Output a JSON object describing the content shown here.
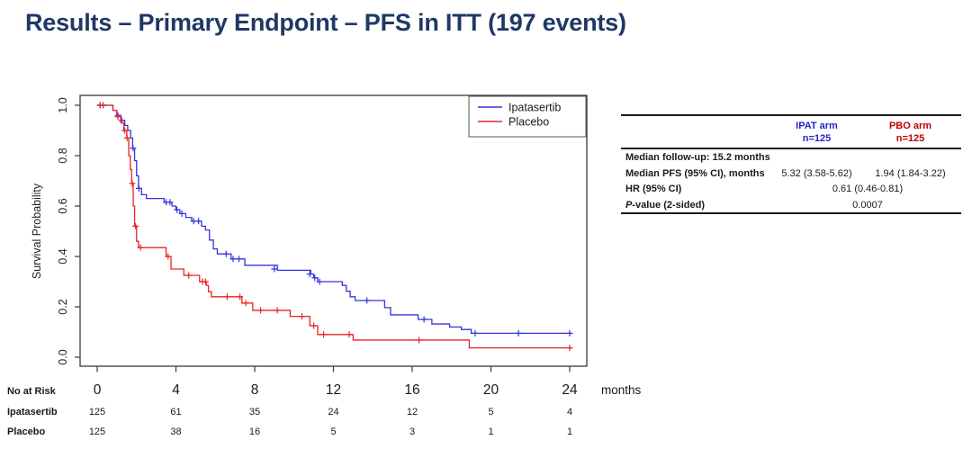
{
  "slide": {
    "title": "Results – Primary Endpoint – PFS in ITT (197 events)"
  },
  "colors": {
    "title": "#1f3864",
    "ipat_text": "#2323cc",
    "pbo_text": "#c00000",
    "ipat_curve": "#3535dd",
    "pbo_curve": "#e62525",
    "axis": "#3a3a3a"
  },
  "chart_data": {
    "type": "line",
    "subtype": "kaplan-meier-step",
    "title": "",
    "xlabel": "months",
    "ylabel": "Survival Probability",
    "xlim": [
      0,
      24
    ],
    "ylim": [
      0.0,
      1.0
    ],
    "xticks": [
      0,
      4,
      8,
      12,
      16,
      20,
      24
    ],
    "yticks": [
      0.0,
      0.2,
      0.4,
      0.6,
      0.8,
      1.0
    ],
    "grid": false,
    "legend_position": "top-right",
    "series": [
      {
        "name": "Ipatasertib",
        "color": "#3535dd",
        "steps": [
          [
            0,
            1.0
          ],
          [
            0.8,
            0.98
          ],
          [
            1.0,
            0.96
          ],
          [
            1.2,
            0.94
          ],
          [
            1.4,
            0.92
          ],
          [
            1.55,
            0.9
          ],
          [
            1.7,
            0.87
          ],
          [
            1.8,
            0.83
          ],
          [
            1.9,
            0.78
          ],
          [
            2.0,
            0.72
          ],
          [
            2.1,
            0.67
          ],
          [
            2.25,
            0.645
          ],
          [
            2.5,
            0.63
          ],
          [
            3.4,
            0.615
          ],
          [
            3.8,
            0.6
          ],
          [
            4.0,
            0.585
          ],
          [
            4.2,
            0.57
          ],
          [
            4.5,
            0.555
          ],
          [
            4.8,
            0.54
          ],
          [
            5.3,
            0.52
          ],
          [
            5.5,
            0.505
          ],
          [
            5.7,
            0.465
          ],
          [
            5.9,
            0.43
          ],
          [
            6.1,
            0.41
          ],
          [
            6.8,
            0.39
          ],
          [
            7.5,
            0.365
          ],
          [
            9.15,
            0.345
          ],
          [
            10.85,
            0.33
          ],
          [
            11.0,
            0.315
          ],
          [
            11.2,
            0.3
          ],
          [
            12.45,
            0.285
          ],
          [
            12.65,
            0.262
          ],
          [
            12.85,
            0.24
          ],
          [
            13.1,
            0.225
          ],
          [
            14.6,
            0.197
          ],
          [
            14.9,
            0.168
          ],
          [
            16.3,
            0.15
          ],
          [
            17.0,
            0.132
          ],
          [
            17.9,
            0.12
          ],
          [
            18.5,
            0.11
          ],
          [
            19.0,
            0.095
          ]
        ],
        "censors": [
          [
            0.15,
            1.0
          ],
          [
            0.3,
            1.0
          ],
          [
            1.05,
            0.96
          ],
          [
            1.25,
            0.94
          ],
          [
            1.82,
            0.83
          ],
          [
            2.12,
            0.67
          ],
          [
            3.5,
            0.615
          ],
          [
            3.7,
            0.615
          ],
          [
            4.05,
            0.585
          ],
          [
            4.3,
            0.57
          ],
          [
            4.9,
            0.54
          ],
          [
            5.15,
            0.54
          ],
          [
            6.55,
            0.41
          ],
          [
            6.9,
            0.39
          ],
          [
            7.2,
            0.39
          ],
          [
            9.0,
            0.35
          ],
          [
            10.8,
            0.33
          ],
          [
            11.05,
            0.315
          ],
          [
            11.3,
            0.3
          ],
          [
            13.7,
            0.225
          ],
          [
            16.6,
            0.15
          ],
          [
            19.2,
            0.095
          ],
          [
            21.4,
            0.095
          ],
          [
            24,
            0.095
          ]
        ]
      },
      {
        "name": "Placebo",
        "color": "#e62525",
        "steps": [
          [
            0,
            1.0
          ],
          [
            0.8,
            0.98
          ],
          [
            1.0,
            0.955
          ],
          [
            1.2,
            0.93
          ],
          [
            1.35,
            0.9
          ],
          [
            1.5,
            0.87
          ],
          [
            1.6,
            0.8
          ],
          [
            1.68,
            0.745
          ],
          [
            1.75,
            0.69
          ],
          [
            1.83,
            0.6
          ],
          [
            1.9,
            0.52
          ],
          [
            2.0,
            0.46
          ],
          [
            2.1,
            0.435
          ],
          [
            3.5,
            0.4
          ],
          [
            3.75,
            0.35
          ],
          [
            4.4,
            0.325
          ],
          [
            5.2,
            0.3
          ],
          [
            5.55,
            0.285
          ],
          [
            5.65,
            0.26
          ],
          [
            5.8,
            0.24
          ],
          [
            7.35,
            0.215
          ],
          [
            7.9,
            0.186
          ],
          [
            9.8,
            0.162
          ],
          [
            10.8,
            0.125
          ],
          [
            11.2,
            0.09
          ],
          [
            13.0,
            0.068
          ],
          [
            18.9,
            0.037
          ]
        ],
        "censors": [
          [
            0.15,
            1.0
          ],
          [
            0.3,
            1.0
          ],
          [
            1.05,
            0.955
          ],
          [
            1.4,
            0.9
          ],
          [
            1.52,
            0.87
          ],
          [
            1.78,
            0.69
          ],
          [
            1.95,
            0.52
          ],
          [
            2.2,
            0.435
          ],
          [
            3.6,
            0.4
          ],
          [
            4.65,
            0.325
          ],
          [
            5.35,
            0.3
          ],
          [
            5.5,
            0.3
          ],
          [
            6.6,
            0.24
          ],
          [
            7.25,
            0.24
          ],
          [
            7.55,
            0.215
          ],
          [
            8.3,
            0.186
          ],
          [
            9.15,
            0.186
          ],
          [
            10.4,
            0.162
          ],
          [
            11.0,
            0.125
          ],
          [
            11.5,
            0.09
          ],
          [
            12.8,
            0.09
          ],
          [
            16.35,
            0.068
          ],
          [
            24,
            0.037
          ]
        ]
      }
    ],
    "risk_table": {
      "header": "No at Risk",
      "xlabel": "months",
      "rows": [
        {
          "label": "Ipatasertib",
          "values": [
            125,
            61,
            35,
            24,
            12,
            5,
            4
          ]
        },
        {
          "label": "Placebo",
          "values": [
            125,
            38,
            16,
            5,
            3,
            1,
            1
          ]
        }
      ]
    }
  },
  "stats_table": {
    "header": {
      "ipat": {
        "arm": "IPAT arm",
        "n": "n=125"
      },
      "pbo": {
        "arm": "PBO arm",
        "n": "n=125"
      }
    },
    "rows": {
      "followup": {
        "label": "Median follow-up: 15.2 months"
      },
      "pfs": {
        "label": "Median PFS (95% CI), months",
        "ipat": "5.32 (3.58-5.62)",
        "pbo": "1.94 (1.84-3.22)"
      },
      "hr": {
        "label": "HR (95% CI)",
        "value": "0.61 (0.46-0.81)"
      },
      "pvalue": {
        "label_italic": "P",
        "label_rest": "-value (2-sided)",
        "value": "0.0007"
      }
    }
  }
}
